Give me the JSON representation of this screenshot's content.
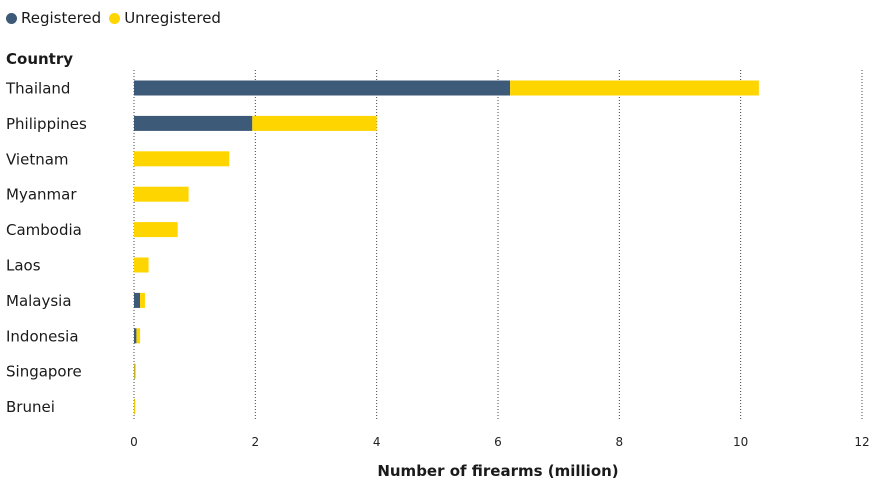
{
  "chart_data": {
    "type": "bar",
    "orientation": "horizontal",
    "stacked": true,
    "categories": [
      "Thailand",
      "Philippines",
      "Vietnam",
      "Myanmar",
      "Cambodia",
      "Laos",
      "Malaysia",
      "Indonesia",
      "Singapore",
      "Brunei"
    ],
    "series": [
      {
        "name": "Registered",
        "color": "#3d5a78",
        "values": [
          6.2,
          1.95,
          0,
          0,
          0,
          0,
          0.1,
          0.04,
          0.005,
          0.002
        ]
      },
      {
        "name": "Unregistered",
        "color": "#ffd500",
        "values": [
          4.1,
          2.05,
          1.57,
          0.9,
          0.72,
          0.24,
          0.08,
          0.06,
          0.025,
          0.02
        ]
      }
    ],
    "xlabel": "Number of firearms (million)",
    "ylabel": "Country",
    "xlim": [
      0,
      12
    ],
    "xticks": [
      0,
      2,
      4,
      6,
      8,
      10,
      12
    ],
    "grid": true,
    "legend": "top-left"
  }
}
